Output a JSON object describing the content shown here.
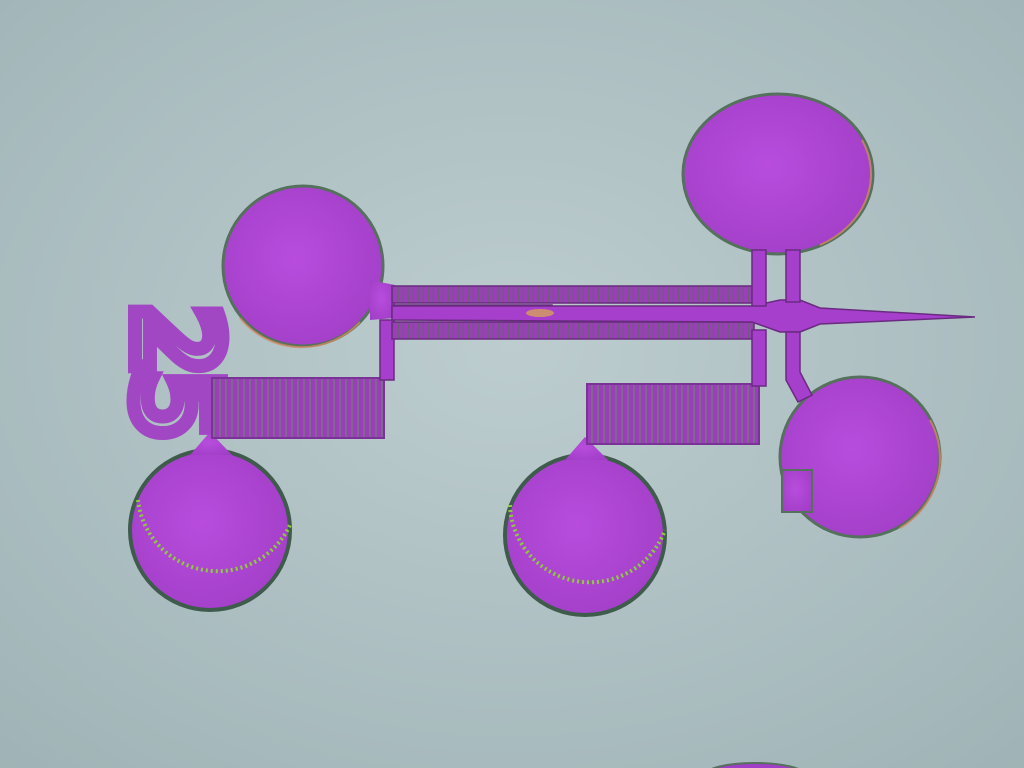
{
  "image": {
    "label": "25",
    "colors": {
      "substrate": "#a9bcbf",
      "substrate_center": "#b8c9cb",
      "metal": "#b142d6",
      "metal_dark": "#8a32a8",
      "pad_edge": "#4f6f5a",
      "pad_rim_highlight": "#d08a60",
      "mask_edge_green": "#8ccf3a",
      "label_fill": "#a247c3"
    },
    "pads": [
      {
        "name": "pad-left-upper"
      },
      {
        "name": "pad-right-upper"
      },
      {
        "name": "pad-right-lower"
      },
      {
        "name": "pad-bottom-left"
      },
      {
        "name": "pad-bottom-middle"
      }
    ],
    "meander_resistors": [
      {
        "name": "meander-left"
      },
      {
        "name": "meander-right"
      }
    ]
  }
}
